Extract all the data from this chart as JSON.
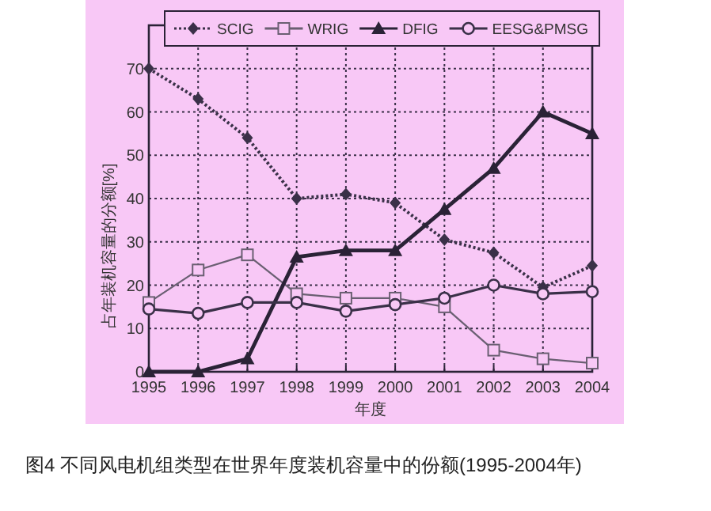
{
  "chart_data": {
    "type": "line",
    "xlabel": "年度",
    "ylabel": "占年装机容量的分额[%]",
    "x": [
      1995,
      1996,
      1997,
      1998,
      1999,
      2000,
      2001,
      2002,
      2003,
      2004
    ],
    "xlim": [
      1995,
      2004
    ],
    "xticks": [
      1995,
      1996,
      1997,
      1998,
      1999,
      2000,
      2001,
      2002,
      2003,
      2004
    ],
    "ylim": [
      0,
      80
    ],
    "yticks": [
      0,
      10,
      20,
      30,
      40,
      50,
      60,
      70
    ],
    "grid": true,
    "legend": "top",
    "series": [
      {
        "name": "SCIG",
        "color": "#3a3048",
        "marker": "diamond",
        "line_style": "dotted",
        "values": [
          70,
          63,
          54,
          40,
          41,
          39,
          30.5,
          27.5,
          19.5,
          24.5
        ]
      },
      {
        "name": "WRIG",
        "color": "#6a5f72",
        "marker": "square",
        "line_style": "solid",
        "values": [
          16,
          23.5,
          27,
          18,
          17,
          17,
          15,
          5,
          3,
          2
        ]
      },
      {
        "name": "DFIG",
        "color": "#2a2236",
        "marker": "triangle",
        "line_style": "solid",
        "values": [
          0,
          0,
          3,
          26.5,
          28,
          28,
          37.5,
          47,
          60,
          55
        ]
      },
      {
        "name": "EESG&PMSG",
        "color": "#3a3048",
        "marker": "circle",
        "line_style": "solid",
        "values": [
          14.5,
          13.5,
          16,
          16,
          14,
          15.5,
          17,
          20,
          18,
          18.5
        ]
      }
    ],
    "annotations": [
      "图4 不同风电机组类型在世界年度装机容量中的份额(1995-2004年)"
    ]
  }
}
